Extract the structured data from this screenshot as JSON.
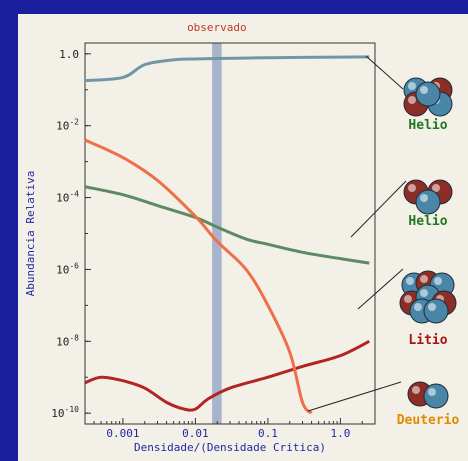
{
  "chart_data": {
    "type": "line",
    "title": "observado",
    "xlabel": "Densidade/(Densidade Critica)",
    "ylabel": "Abundancia Relativa",
    "xscale": "log",
    "yscale": "log",
    "xlim": [
      0.0003,
      3
    ],
    "ylim": [
      5e-11,
      2
    ],
    "xticks": [
      {
        "value": 0.001,
        "label": "0.001"
      },
      {
        "value": 0.01,
        "label": "0.01"
      },
      {
        "value": 0.1,
        "label": "0.1"
      },
      {
        "value": 1,
        "label": "1.0"
      }
    ],
    "yticks": [
      {
        "value": 1,
        "base": "1.0",
        "exp": ""
      },
      {
        "value": 0.01,
        "base": "10",
        "exp": "-2"
      },
      {
        "value": 0.0001,
        "base": "10",
        "exp": "-4"
      },
      {
        "value": 1e-06,
        "base": "10",
        "exp": "-6"
      },
      {
        "value": 1e-08,
        "base": "10",
        "exp": "-8"
      },
      {
        "value": 1e-10,
        "base": "10",
        "exp": "-10"
      }
    ],
    "observed_band": [
      0.017,
      0.023
    ],
    "series": [
      {
        "key": "helio4",
        "color": "#6f97a8",
        "label": "Helio",
        "points": [
          [
            0.0003,
            0.18
          ],
          [
            0.001,
            0.22
          ],
          [
            0.002,
            0.5
          ],
          [
            0.005,
            0.68
          ],
          [
            0.01,
            0.72
          ],
          [
            0.02,
            0.74
          ],
          [
            0.1,
            0.78
          ],
          [
            0.5,
            0.8
          ],
          [
            2.5,
            0.82
          ]
        ]
      },
      {
        "key": "helio3",
        "color": "#5c8a64",
        "label": "Helio",
        "points": [
          [
            0.0003,
            0.0002
          ],
          [
            0.001,
            0.00012
          ],
          [
            0.003,
            6e-05
          ],
          [
            0.01,
            2.8e-05
          ],
          [
            0.02,
            1.5e-05
          ],
          [
            0.05,
            7e-06
          ],
          [
            0.1,
            5e-06
          ],
          [
            0.3,
            3e-06
          ],
          [
            1,
            2e-06
          ],
          [
            2.5,
            1.5e-06
          ]
        ]
      },
      {
        "key": "litio",
        "color": "#b32424",
        "label": "Litio",
        "points": [
          [
            0.0003,
            7e-10
          ],
          [
            0.0005,
            1e-09
          ],
          [
            0.001,
            8e-10
          ],
          [
            0.002,
            5e-10
          ],
          [
            0.004,
            2e-10
          ],
          [
            0.007,
            1.3e-10
          ],
          [
            0.01,
            1.3e-10
          ],
          [
            0.015,
            2.5e-10
          ],
          [
            0.03,
            5e-10
          ],
          [
            0.1,
            1e-09
          ],
          [
            0.3,
            2e-09
          ],
          [
            1,
            4e-09
          ],
          [
            2.5,
            1e-08
          ]
        ]
      },
      {
        "key": "deuterio",
        "color": "#ef7048",
        "label": "Deuterio",
        "points": [
          [
            0.0003,
            0.004
          ],
          [
            0.001,
            0.0013
          ],
          [
            0.003,
            0.0003
          ],
          [
            0.01,
            3e-05
          ],
          [
            0.02,
            6e-06
          ],
          [
            0.05,
            1e-06
          ],
          [
            0.1,
            1e-07
          ],
          [
            0.2,
            5e-09
          ],
          [
            0.3,
            2e-10
          ],
          [
            0.4,
            1e-10
          ]
        ]
      }
    ],
    "legend": [
      {
        "label": "Helio",
        "color": "#227722",
        "series": "helio4"
      },
      {
        "label": "Helio",
        "color": "#227722",
        "series": "helio3"
      },
      {
        "label": "Litio",
        "color": "#aa1111",
        "series": "litio"
      },
      {
        "label": "Deuterio",
        "color": "#e08a00",
        "series": "deuterio"
      }
    ],
    "colors": {
      "frame": "#f3f1e7",
      "page": "#1a1f9e",
      "axis_text": "#1f28a6",
      "observed_band": "#9aa9c8",
      "title": "#c0392b"
    }
  }
}
